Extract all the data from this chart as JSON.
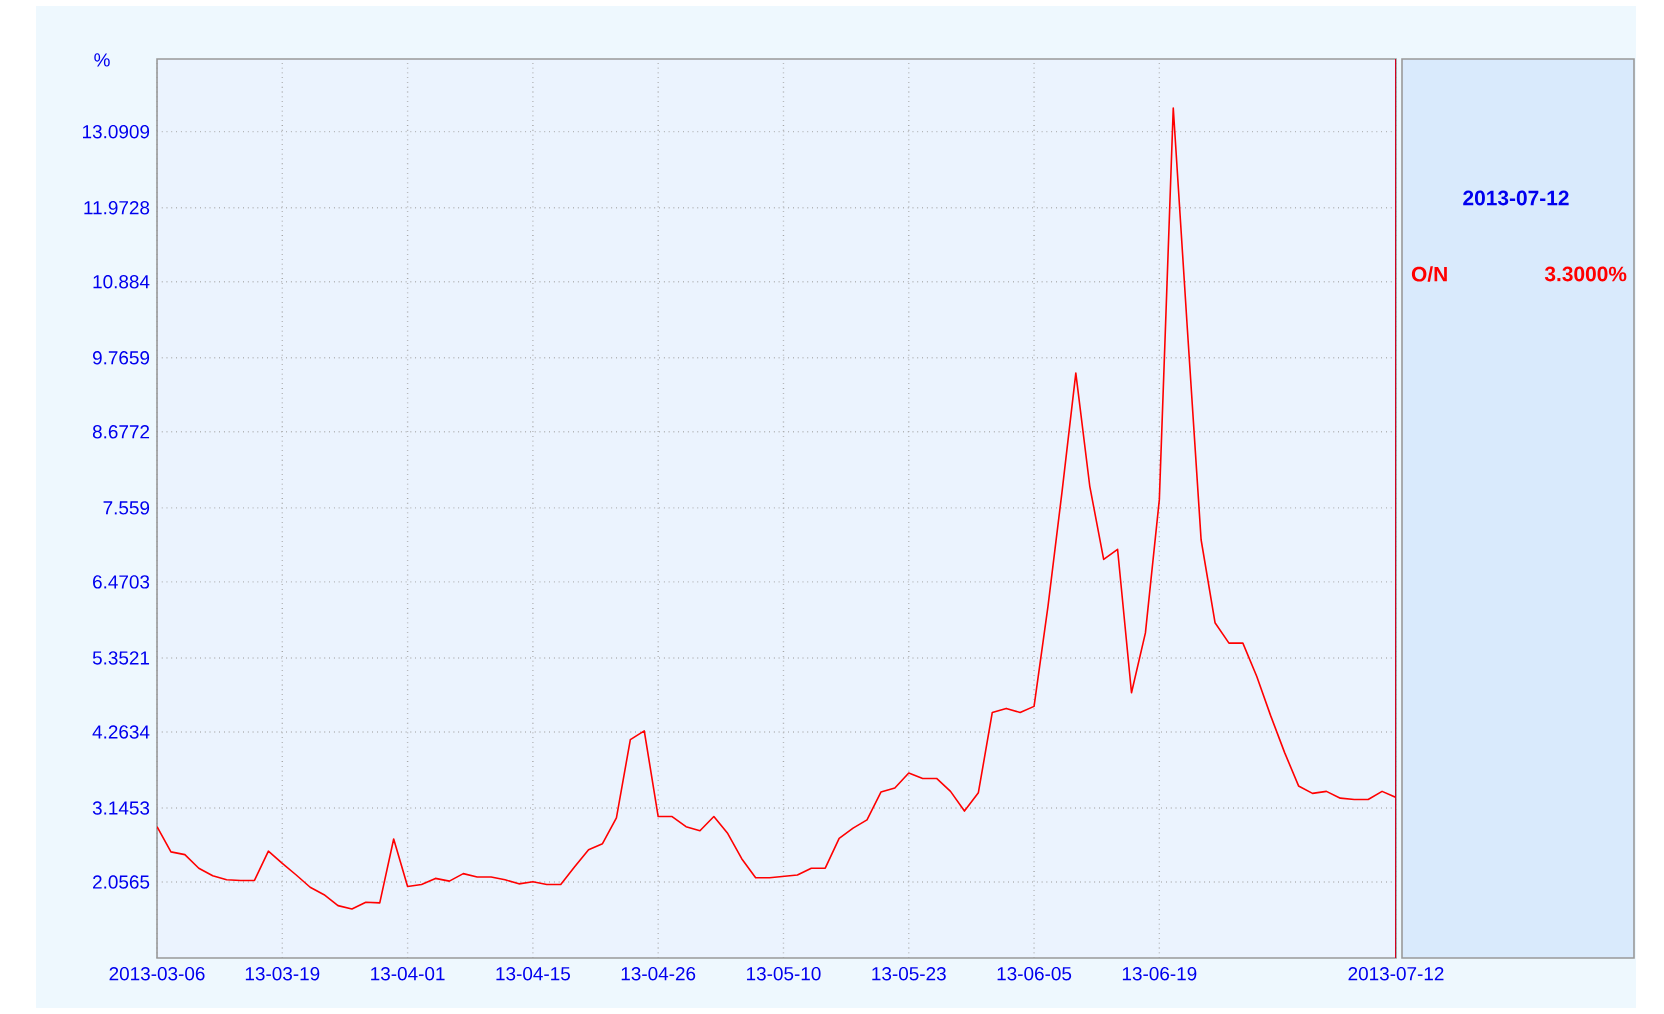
{
  "chart_data": {
    "type": "line",
    "ylabel": "%",
    "categories": [
      "2013-03-06",
      null,
      null,
      null,
      null,
      null,
      null,
      null,
      null,
      "13-03-19",
      null,
      null,
      null,
      null,
      null,
      null,
      null,
      null,
      "13-04-01",
      null,
      null,
      null,
      null,
      null,
      null,
      null,
      null,
      "13-04-15",
      null,
      null,
      null,
      null,
      null,
      null,
      null,
      null,
      "13-04-26",
      null,
      null,
      null,
      null,
      null,
      null,
      null,
      null,
      "13-05-10",
      null,
      null,
      null,
      null,
      null,
      null,
      null,
      null,
      "13-05-23",
      null,
      null,
      null,
      null,
      null,
      null,
      null,
      null,
      "13-06-05",
      null,
      null,
      null,
      null,
      null,
      null,
      null,
      null,
      "13-06-19",
      null,
      null,
      null,
      null,
      null,
      null,
      null,
      null,
      null,
      null,
      null,
      null,
      null,
      null,
      null,
      null,
      "2013-07-12"
    ],
    "series": [
      {
        "name": "O/N",
        "color": "#ff0000",
        "values": [
          2.87,
          2.5,
          2.46,
          2.26,
          2.15,
          2.09,
          2.08,
          2.08,
          2.51,
          2.33,
          2.16,
          1.98,
          1.87,
          1.71,
          1.66,
          1.76,
          1.75,
          2.69,
          1.99,
          2.02,
          2.11,
          2.07,
          2.18,
          2.13,
          2.13,
          2.09,
          2.03,
          2.06,
          2.02,
          2.02,
          2.28,
          2.53,
          2.62,
          3.0,
          4.15,
          4.28,
          3.02,
          3.02,
          2.87,
          2.81,
          3.02,
          2.77,
          2.4,
          2.12,
          2.12,
          2.14,
          2.16,
          2.26,
          2.26,
          2.7,
          2.85,
          2.97,
          3.38,
          3.44,
          3.66,
          3.58,
          3.58,
          3.39,
          3.1,
          3.37,
          4.55,
          4.61,
          4.55,
          4.64,
          6.11,
          7.78,
          9.54,
          7.88,
          6.8,
          6.95,
          4.84,
          5.72,
          7.68,
          13.44,
          10.23,
          7.09,
          5.87,
          5.57,
          5.57,
          5.08,
          4.5,
          3.96,
          3.47,
          3.36,
          3.39,
          3.29,
          3.27,
          3.27,
          3.39,
          3.3
        ]
      }
    ],
    "ylim": [
      0.94,
      14.16
    ],
    "yticks": [
      2.0565,
      3.1453,
      4.2634,
      5.3521,
      6.4703,
      7.559,
      8.6772,
      9.7659,
      10.884,
      11.9728,
      13.0909
    ],
    "grid": true,
    "legend": "right",
    "marker": "none",
    "annotations": [
      "2013-07-12",
      "3.3000%"
    ]
  }
}
